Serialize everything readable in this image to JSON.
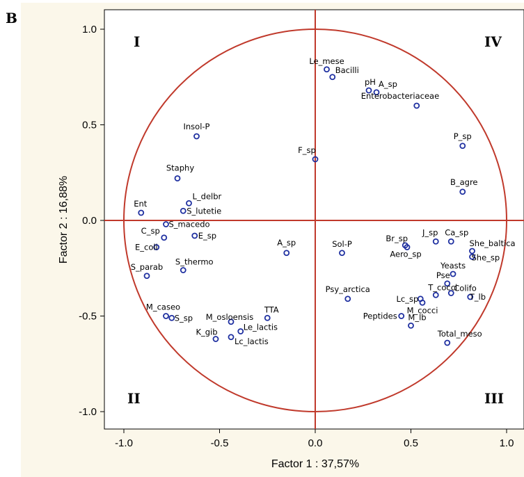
{
  "panel_label": "B",
  "colors": {
    "background": "#FBF7EA",
    "plot_area": "#FFFFFF",
    "point": "#1E2FA0",
    "circle": "#C0392B",
    "axes_lines": "#C0392B",
    "text": "#000000"
  },
  "chart_data": {
    "type": "scatter",
    "xlabel": "Factor 1 : 37,57%",
    "ylabel": "Factor 2 : 16,88%",
    "xlim": [
      -1.1,
      1.1
    ],
    "ylim": [
      -1.1,
      1.1
    ],
    "x_ticks": [
      -1.0,
      -0.5,
      0.0,
      0.5,
      1.0
    ],
    "x_tick_labels": [
      "-1.0",
      "-0.5",
      "0.0",
      "0.5",
      "1.0"
    ],
    "y_ticks": [
      1.0,
      0.5,
      0.0,
      -0.5,
      -1.0
    ],
    "y_tick_labels": [
      "1.0",
      "0.5",
      "0.0",
      "-0.5",
      "-1.0"
    ],
    "grid": false,
    "unit_circle": true,
    "quadrant_labels": [
      "I",
      "IV",
      "II",
      "III"
    ],
    "points": [
      {
        "label": "Le_mese",
        "x": 0.06,
        "y": 0.79
      },
      {
        "label": "Bacilli",
        "x": 0.09,
        "y": 0.75
      },
      {
        "label": "pH",
        "x": 0.28,
        "y": 0.68
      },
      {
        "label": "A_sp",
        "x": 0.32,
        "y": 0.67
      },
      {
        "label": "Enterobacteriaceae",
        "x": 0.53,
        "y": 0.6
      },
      {
        "label": "Insol-P",
        "x": -0.62,
        "y": 0.44
      },
      {
        "label": "F_sp",
        "x": 0.0,
        "y": 0.32
      },
      {
        "label": "P_sp",
        "x": 0.77,
        "y": 0.39
      },
      {
        "label": "Staphy",
        "x": -0.72,
        "y": 0.22
      },
      {
        "label": "L_delbr",
        "x": -0.66,
        "y": 0.09
      },
      {
        "label": "B_agre",
        "x": 0.77,
        "y": 0.15
      },
      {
        "label": "Ent",
        "x": -0.91,
        "y": 0.04
      },
      {
        "label": "S_lutetie",
        "x": -0.69,
        "y": 0.05
      },
      {
        "label": "S_macedo",
        "x": -0.78,
        "y": -0.02
      },
      {
        "label": "C_sp",
        "x": -0.79,
        "y": -0.09
      },
      {
        "label": "E_sp",
        "x": -0.63,
        "y": -0.08
      },
      {
        "label": "E_coli",
        "x": -0.83,
        "y": -0.14
      },
      {
        "label": "A_sp",
        "x": -0.15,
        "y": -0.17
      },
      {
        "label": "Sol-P",
        "x": 0.14,
        "y": -0.17
      },
      {
        "label": "Br_sp",
        "x": 0.47,
        "y": -0.13
      },
      {
        "label": "Aero_sp",
        "x": 0.48,
        "y": -0.14
      },
      {
        "label": "J_sp",
        "x": 0.63,
        "y": -0.11
      },
      {
        "label": "Ca_sp",
        "x": 0.71,
        "y": -0.11
      },
      {
        "label": "She_baltica",
        "x": 0.82,
        "y": -0.16
      },
      {
        "label": "She_sp",
        "x": 0.82,
        "y": -0.19
      },
      {
        "label": "S_thermo",
        "x": -0.69,
        "y": -0.26
      },
      {
        "label": "S_parab",
        "x": -0.88,
        "y": -0.29
      },
      {
        "label": "Yeasts",
        "x": 0.72,
        "y": -0.28
      },
      {
        "label": "Pse",
        "x": 0.69,
        "y": -0.33
      },
      {
        "label": "T_cocci",
        "x": 0.63,
        "y": -0.39
      },
      {
        "label": "Colifo",
        "x": 0.71,
        "y": -0.38
      },
      {
        "label": "T_lb",
        "x": 0.81,
        "y": -0.4
      },
      {
        "label": "Psy_arctica",
        "x": 0.17,
        "y": -0.41
      },
      {
        "label": "Lc_sp",
        "x": 0.55,
        "y": -0.41
      },
      {
        "label": "M_cocci",
        "x": 0.56,
        "y": -0.43
      },
      {
        "label": "M_caseo",
        "x": -0.78,
        "y": -0.5
      },
      {
        "label": "S_sp",
        "x": -0.75,
        "y": -0.51
      },
      {
        "label": "TTA",
        "x": -0.25,
        "y": -0.51
      },
      {
        "label": "M_osloensis",
        "x": -0.44,
        "y": -0.53
      },
      {
        "label": "Peptides",
        "x": 0.45,
        "y": -0.5
      },
      {
        "label": "M_lb",
        "x": 0.5,
        "y": -0.55
      },
      {
        "label": "Le_lactis",
        "x": -0.39,
        "y": -0.58
      },
      {
        "label": "K_gib",
        "x": -0.52,
        "y": -0.62
      },
      {
        "label": "Lc_lactis",
        "x": -0.44,
        "y": -0.61
      },
      {
        "label": "Total_meso",
        "x": 0.69,
        "y": -0.64
      }
    ]
  }
}
